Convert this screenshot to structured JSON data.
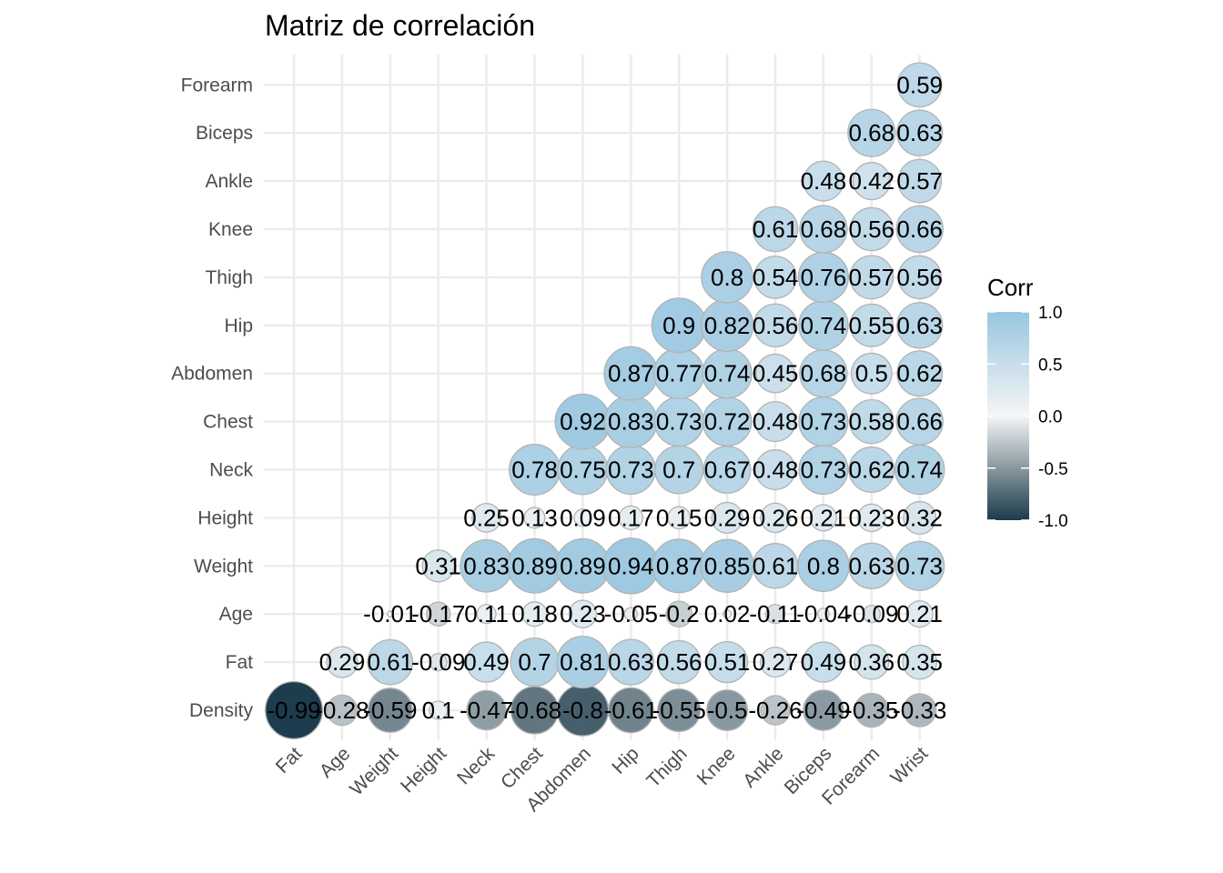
{
  "chart_data": {
    "type": "heatmap",
    "style": "circle correlogram (lower triangle)",
    "title": "Matriz de correlación",
    "x_categories": [
      "Fat",
      "Age",
      "Weight",
      "Height",
      "Neck",
      "Chest",
      "Abdomen",
      "Hip",
      "Thigh",
      "Knee",
      "Ankle",
      "Biceps",
      "Forearm",
      "Wrist"
    ],
    "y_categories": [
      "Density",
      "Fat",
      "Age",
      "Weight",
      "Height",
      "Neck",
      "Chest",
      "Abdomen",
      "Hip",
      "Thigh",
      "Knee",
      "Ankle",
      "Biceps",
      "Forearm"
    ],
    "cells": [
      {
        "x": "Fat",
        "y": "Density",
        "value": -0.99,
        "label": "-0.99"
      },
      {
        "x": "Age",
        "y": "Density",
        "value": -0.28,
        "label": "-0.28"
      },
      {
        "x": "Weight",
        "y": "Density",
        "value": -0.59,
        "label": "-0.59"
      },
      {
        "x": "Height",
        "y": "Density",
        "value": 0.1,
        "label": "0.1"
      },
      {
        "x": "Neck",
        "y": "Density",
        "value": -0.47,
        "label": "-0.47"
      },
      {
        "x": "Chest",
        "y": "Density",
        "value": -0.68,
        "label": "-0.68"
      },
      {
        "x": "Abdomen",
        "y": "Density",
        "value": -0.8,
        "label": "-0.8"
      },
      {
        "x": "Hip",
        "y": "Density",
        "value": -0.61,
        "label": "-0.61"
      },
      {
        "x": "Thigh",
        "y": "Density",
        "value": -0.55,
        "label": "-0.55"
      },
      {
        "x": "Knee",
        "y": "Density",
        "value": -0.5,
        "label": "-0.5"
      },
      {
        "x": "Ankle",
        "y": "Density",
        "value": -0.26,
        "label": "-0.26"
      },
      {
        "x": "Biceps",
        "y": "Density",
        "value": -0.49,
        "label": "-0.49"
      },
      {
        "x": "Forearm",
        "y": "Density",
        "value": -0.35,
        "label": "-0.35"
      },
      {
        "x": "Wrist",
        "y": "Density",
        "value": -0.33,
        "label": "-0.33"
      },
      {
        "x": "Age",
        "y": "Fat",
        "value": 0.29,
        "label": "0.29"
      },
      {
        "x": "Weight",
        "y": "Fat",
        "value": 0.61,
        "label": "0.61"
      },
      {
        "x": "Height",
        "y": "Fat",
        "value": -0.09,
        "label": "-0.09"
      },
      {
        "x": "Neck",
        "y": "Fat",
        "value": 0.49,
        "label": "0.49"
      },
      {
        "x": "Chest",
        "y": "Fat",
        "value": 0.7,
        "label": "0.7"
      },
      {
        "x": "Abdomen",
        "y": "Fat",
        "value": 0.81,
        "label": "0.81"
      },
      {
        "x": "Hip",
        "y": "Fat",
        "value": 0.63,
        "label": "0.63"
      },
      {
        "x": "Thigh",
        "y": "Fat",
        "value": 0.56,
        "label": "0.56"
      },
      {
        "x": "Knee",
        "y": "Fat",
        "value": 0.51,
        "label": "0.51"
      },
      {
        "x": "Ankle",
        "y": "Fat",
        "value": 0.27,
        "label": "0.27"
      },
      {
        "x": "Biceps",
        "y": "Fat",
        "value": 0.49,
        "label": "0.49"
      },
      {
        "x": "Forearm",
        "y": "Fat",
        "value": 0.36,
        "label": "0.36"
      },
      {
        "x": "Wrist",
        "y": "Fat",
        "value": 0.35,
        "label": "0.35"
      },
      {
        "x": "Weight",
        "y": "Age",
        "value": -0.01,
        "label": "-0.01"
      },
      {
        "x": "Height",
        "y": "Age",
        "value": -0.17,
        "label": "-0.17"
      },
      {
        "x": "Neck",
        "y": "Age",
        "value": 0.11,
        "label": "0.11"
      },
      {
        "x": "Chest",
        "y": "Age",
        "value": 0.18,
        "label": "0.18"
      },
      {
        "x": "Abdomen",
        "y": "Age",
        "value": 0.23,
        "label": "0.23"
      },
      {
        "x": "Hip",
        "y": "Age",
        "value": -0.05,
        "label": "-0.05"
      },
      {
        "x": "Thigh",
        "y": "Age",
        "value": -0.2,
        "label": "-0.2"
      },
      {
        "x": "Knee",
        "y": "Age",
        "value": 0.02,
        "label": "0.02"
      },
      {
        "x": "Ankle",
        "y": "Age",
        "value": -0.11,
        "label": "-0.11"
      },
      {
        "x": "Biceps",
        "y": "Age",
        "value": -0.04,
        "label": "-0.04"
      },
      {
        "x": "Forearm",
        "y": "Age",
        "value": -0.09,
        "label": "-0.09"
      },
      {
        "x": "Wrist",
        "y": "Age",
        "value": 0.21,
        "label": "0.21"
      },
      {
        "x": "Height",
        "y": "Weight",
        "value": 0.31,
        "label": "0.31"
      },
      {
        "x": "Neck",
        "y": "Weight",
        "value": 0.83,
        "label": "0.83"
      },
      {
        "x": "Chest",
        "y": "Weight",
        "value": 0.89,
        "label": "0.89"
      },
      {
        "x": "Abdomen",
        "y": "Weight",
        "value": 0.89,
        "label": "0.89"
      },
      {
        "x": "Hip",
        "y": "Weight",
        "value": 0.94,
        "label": "0.94"
      },
      {
        "x": "Thigh",
        "y": "Weight",
        "value": 0.87,
        "label": "0.87"
      },
      {
        "x": "Knee",
        "y": "Weight",
        "value": 0.85,
        "label": "0.85"
      },
      {
        "x": "Ankle",
        "y": "Weight",
        "value": 0.61,
        "label": "0.61"
      },
      {
        "x": "Biceps",
        "y": "Weight",
        "value": 0.8,
        "label": "0.8"
      },
      {
        "x": "Forearm",
        "y": "Weight",
        "value": 0.63,
        "label": "0.63"
      },
      {
        "x": "Wrist",
        "y": "Weight",
        "value": 0.73,
        "label": "0.73"
      },
      {
        "x": "Neck",
        "y": "Height",
        "value": 0.25,
        "label": "0.25"
      },
      {
        "x": "Chest",
        "y": "Height",
        "value": 0.13,
        "label": "0.13"
      },
      {
        "x": "Abdomen",
        "y": "Height",
        "value": 0.09,
        "label": "0.09"
      },
      {
        "x": "Hip",
        "y": "Height",
        "value": 0.17,
        "label": "0.17"
      },
      {
        "x": "Thigh",
        "y": "Height",
        "value": 0.15,
        "label": "0.15"
      },
      {
        "x": "Knee",
        "y": "Height",
        "value": 0.29,
        "label": "0.29"
      },
      {
        "x": "Ankle",
        "y": "Height",
        "value": 0.26,
        "label": "0.26"
      },
      {
        "x": "Biceps",
        "y": "Height",
        "value": 0.21,
        "label": "0.21"
      },
      {
        "x": "Forearm",
        "y": "Height",
        "value": 0.23,
        "label": "0.23"
      },
      {
        "x": "Wrist",
        "y": "Height",
        "value": 0.32,
        "label": "0.32"
      },
      {
        "x": "Chest",
        "y": "Neck",
        "value": 0.78,
        "label": "0.78"
      },
      {
        "x": "Abdomen",
        "y": "Neck",
        "value": 0.75,
        "label": "0.75"
      },
      {
        "x": "Hip",
        "y": "Neck",
        "value": 0.73,
        "label": "0.73"
      },
      {
        "x": "Thigh",
        "y": "Neck",
        "value": 0.7,
        "label": "0.7"
      },
      {
        "x": "Knee",
        "y": "Neck",
        "value": 0.67,
        "label": "0.67"
      },
      {
        "x": "Ankle",
        "y": "Neck",
        "value": 0.48,
        "label": "0.48"
      },
      {
        "x": "Biceps",
        "y": "Neck",
        "value": 0.73,
        "label": "0.73"
      },
      {
        "x": "Forearm",
        "y": "Neck",
        "value": 0.62,
        "label": "0.62"
      },
      {
        "x": "Wrist",
        "y": "Neck",
        "value": 0.74,
        "label": "0.74"
      },
      {
        "x": "Abdomen",
        "y": "Chest",
        "value": 0.92,
        "label": "0.92"
      },
      {
        "x": "Hip",
        "y": "Chest",
        "value": 0.83,
        "label": "0.83"
      },
      {
        "x": "Thigh",
        "y": "Chest",
        "value": 0.73,
        "label": "0.73"
      },
      {
        "x": "Knee",
        "y": "Chest",
        "value": 0.72,
        "label": "0.72"
      },
      {
        "x": "Ankle",
        "y": "Chest",
        "value": 0.48,
        "label": "0.48"
      },
      {
        "x": "Biceps",
        "y": "Chest",
        "value": 0.73,
        "label": "0.73"
      },
      {
        "x": "Forearm",
        "y": "Chest",
        "value": 0.58,
        "label": "0.58"
      },
      {
        "x": "Wrist",
        "y": "Chest",
        "value": 0.66,
        "label": "0.66"
      },
      {
        "x": "Hip",
        "y": "Abdomen",
        "value": 0.87,
        "label": "0.87"
      },
      {
        "x": "Thigh",
        "y": "Abdomen",
        "value": 0.77,
        "label": "0.77"
      },
      {
        "x": "Knee",
        "y": "Abdomen",
        "value": 0.74,
        "label": "0.74"
      },
      {
        "x": "Ankle",
        "y": "Abdomen",
        "value": 0.45,
        "label": "0.45"
      },
      {
        "x": "Biceps",
        "y": "Abdomen",
        "value": 0.68,
        "label": "0.68"
      },
      {
        "x": "Forearm",
        "y": "Abdomen",
        "value": 0.5,
        "label": "0.5"
      },
      {
        "x": "Wrist",
        "y": "Abdomen",
        "value": 0.62,
        "label": "0.62"
      },
      {
        "x": "Thigh",
        "y": "Hip",
        "value": 0.9,
        "label": "0.9"
      },
      {
        "x": "Knee",
        "y": "Hip",
        "value": 0.82,
        "label": "0.82"
      },
      {
        "x": "Ankle",
        "y": "Hip",
        "value": 0.56,
        "label": "0.56"
      },
      {
        "x": "Biceps",
        "y": "Hip",
        "value": 0.74,
        "label": "0.74"
      },
      {
        "x": "Forearm",
        "y": "Hip",
        "value": 0.55,
        "label": "0.55"
      },
      {
        "x": "Wrist",
        "y": "Hip",
        "value": 0.63,
        "label": "0.63"
      },
      {
        "x": "Knee",
        "y": "Thigh",
        "value": 0.8,
        "label": "0.8"
      },
      {
        "x": "Ankle",
        "y": "Thigh",
        "value": 0.54,
        "label": "0.54"
      },
      {
        "x": "Biceps",
        "y": "Thigh",
        "value": 0.76,
        "label": "0.76"
      },
      {
        "x": "Forearm",
        "y": "Thigh",
        "value": 0.57,
        "label": "0.57"
      },
      {
        "x": "Wrist",
        "y": "Thigh",
        "value": 0.56,
        "label": "0.56"
      },
      {
        "x": "Ankle",
        "y": "Knee",
        "value": 0.61,
        "label": "0.61"
      },
      {
        "x": "Biceps",
        "y": "Knee",
        "value": 0.68,
        "label": "0.68"
      },
      {
        "x": "Forearm",
        "y": "Knee",
        "value": 0.56,
        "label": "0.56"
      },
      {
        "x": "Wrist",
        "y": "Knee",
        "value": 0.66,
        "label": "0.66"
      },
      {
        "x": "Biceps",
        "y": "Ankle",
        "value": 0.48,
        "label": "0.48"
      },
      {
        "x": "Forearm",
        "y": "Ankle",
        "value": 0.42,
        "label": "0.42"
      },
      {
        "x": "Wrist",
        "y": "Ankle",
        "value": 0.57,
        "label": "0.57"
      },
      {
        "x": "Forearm",
        "y": "Biceps",
        "value": 0.68,
        "label": "0.68"
      },
      {
        "x": "Wrist",
        "y": "Biceps",
        "value": 0.63,
        "label": "0.63"
      },
      {
        "x": "Wrist",
        "y": "Forearm",
        "value": 0.59,
        "label": "0.59"
      }
    ],
    "legend": {
      "title": "Corr",
      "ticks": [
        "1.0",
        "0.5",
        "0.0",
        "-0.5",
        "-1.0"
      ],
      "tick_values": [
        1.0,
        0.5,
        0.0,
        -0.5,
        -1.0
      ],
      "range": [
        -1,
        1
      ],
      "colors": {
        "low": "#1b3a4b",
        "mid": "#f5f5f5",
        "high": "#98c6e0"
      },
      "placement": "right"
    },
    "grid": true,
    "circle_stroke": "#b3b3b3"
  }
}
